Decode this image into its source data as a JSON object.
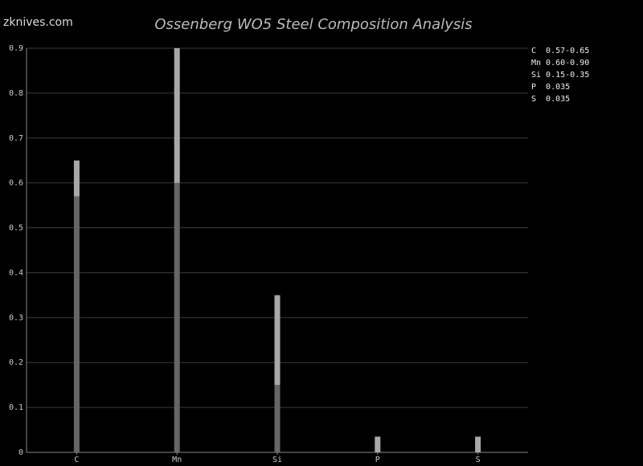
{
  "chart_data": {
    "type": "range_bar",
    "title": "Ossenberg WO5 Steel Composition Analysis",
    "watermark": "zknives.com",
    "categories": [
      "C",
      "Mn",
      "Si",
      "P",
      "S"
    ],
    "low": [
      0.57,
      0.6,
      0.15,
      null,
      null
    ],
    "high": [
      0.65,
      0.9,
      0.35,
      0.035,
      0.035
    ],
    "low_color": "#666666",
    "high_color": "#a8a8a8",
    "ylim": [
      0,
      0.9
    ],
    "yticks": [
      0,
      0.1,
      0.2,
      0.3,
      0.4,
      0.5,
      0.6,
      0.7,
      0.8,
      0.9
    ],
    "grid": true,
    "legend": [
      "C  0.57-0.65",
      "Mn 0.60-0.90",
      "Si 0.15-0.35",
      "P  0.035",
      "S  0.035"
    ]
  }
}
